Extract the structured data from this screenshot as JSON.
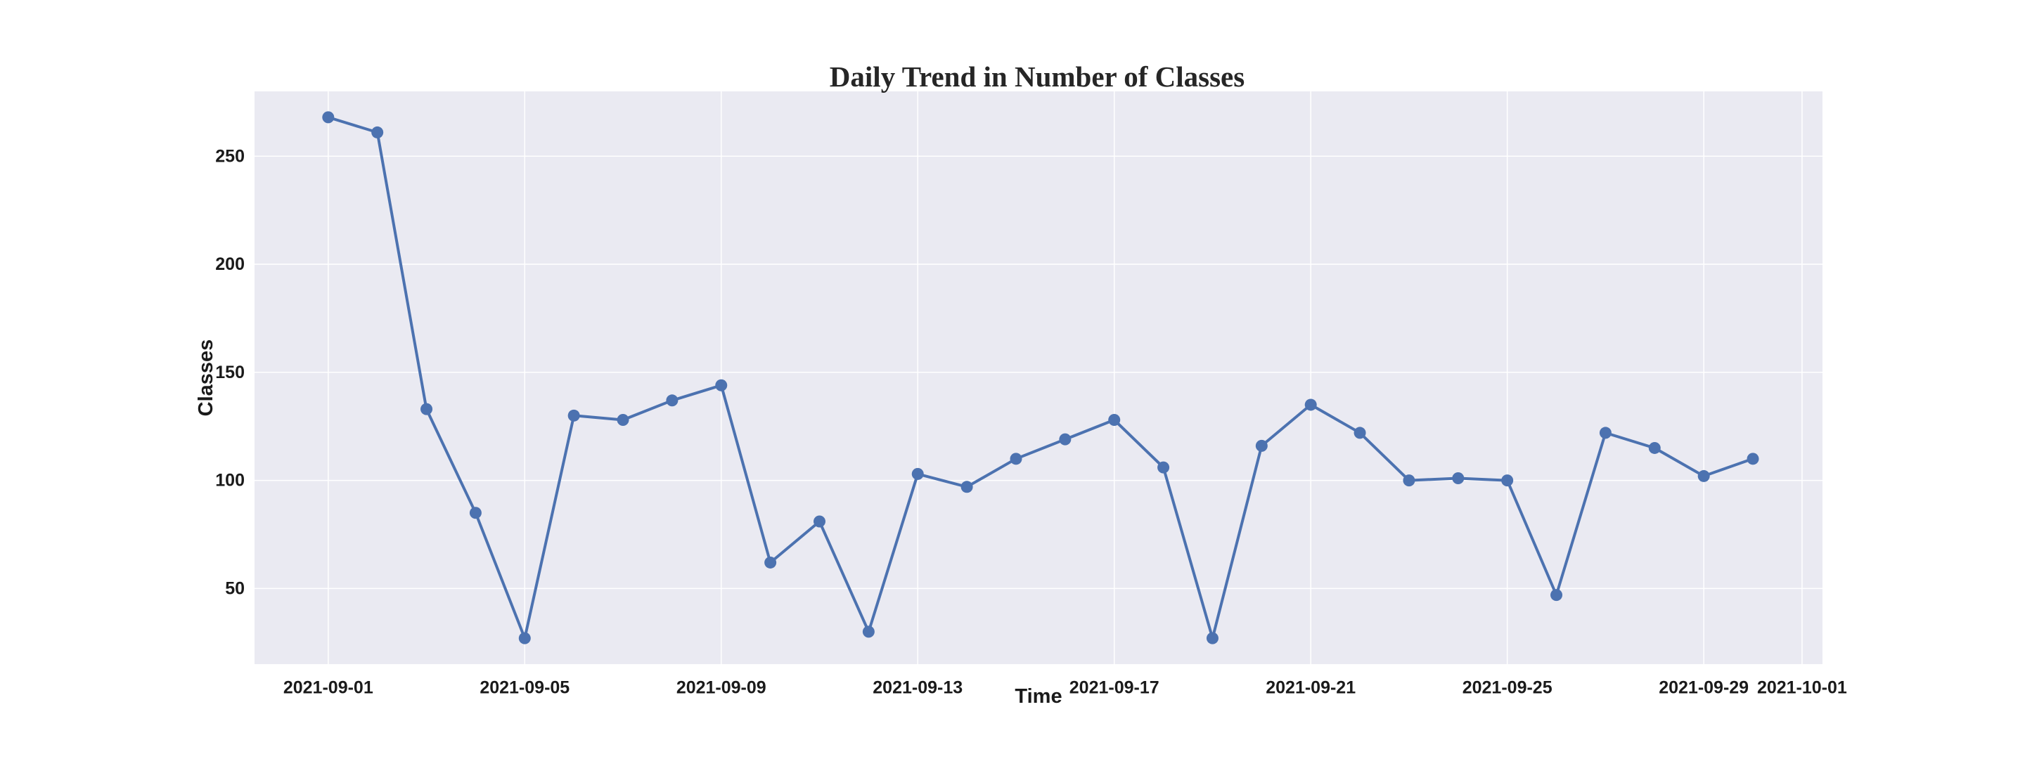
{
  "chart_data": {
    "type": "line",
    "title": "Daily Trend in Number of Classes",
    "xlabel": "Time",
    "ylabel": "Classes",
    "x": [
      "2021-09-01",
      "2021-09-02",
      "2021-09-03",
      "2021-09-04",
      "2021-09-05",
      "2021-09-06",
      "2021-09-07",
      "2021-09-08",
      "2021-09-09",
      "2021-09-10",
      "2021-09-11",
      "2021-09-12",
      "2021-09-13",
      "2021-09-14",
      "2021-09-15",
      "2021-09-16",
      "2021-09-17",
      "2021-09-18",
      "2021-09-19",
      "2021-09-20",
      "2021-09-21",
      "2021-09-22",
      "2021-09-23",
      "2021-09-24",
      "2021-09-25",
      "2021-09-26",
      "2021-09-27",
      "2021-09-28",
      "2021-09-29",
      "2021-09-30"
    ],
    "series": [
      {
        "values": [
          268,
          261,
          133,
          85,
          27,
          130,
          128,
          137,
          144,
          62,
          81,
          30,
          103,
          97,
          110,
          119,
          128,
          106,
          27,
          116,
          135,
          122,
          100,
          101,
          100,
          47,
          122,
          115,
          102,
          110
        ]
      }
    ],
    "xlim": [
      "2021-08-30T12:00",
      "2021-10-01T10:00"
    ],
    "ylim": [
      15,
      280
    ],
    "xticks": [
      "2021-09-01",
      "2021-09-05",
      "2021-09-09",
      "2021-09-13",
      "2021-09-17",
      "2021-09-21",
      "2021-09-25",
      "2021-09-29",
      "2021-10-01"
    ],
    "yticks": [
      50,
      100,
      150,
      200,
      250
    ],
    "grid": true,
    "colors": {
      "line": "#4c72b0",
      "plot_background": "#eaeaf2",
      "grid": "#ffffff"
    }
  }
}
